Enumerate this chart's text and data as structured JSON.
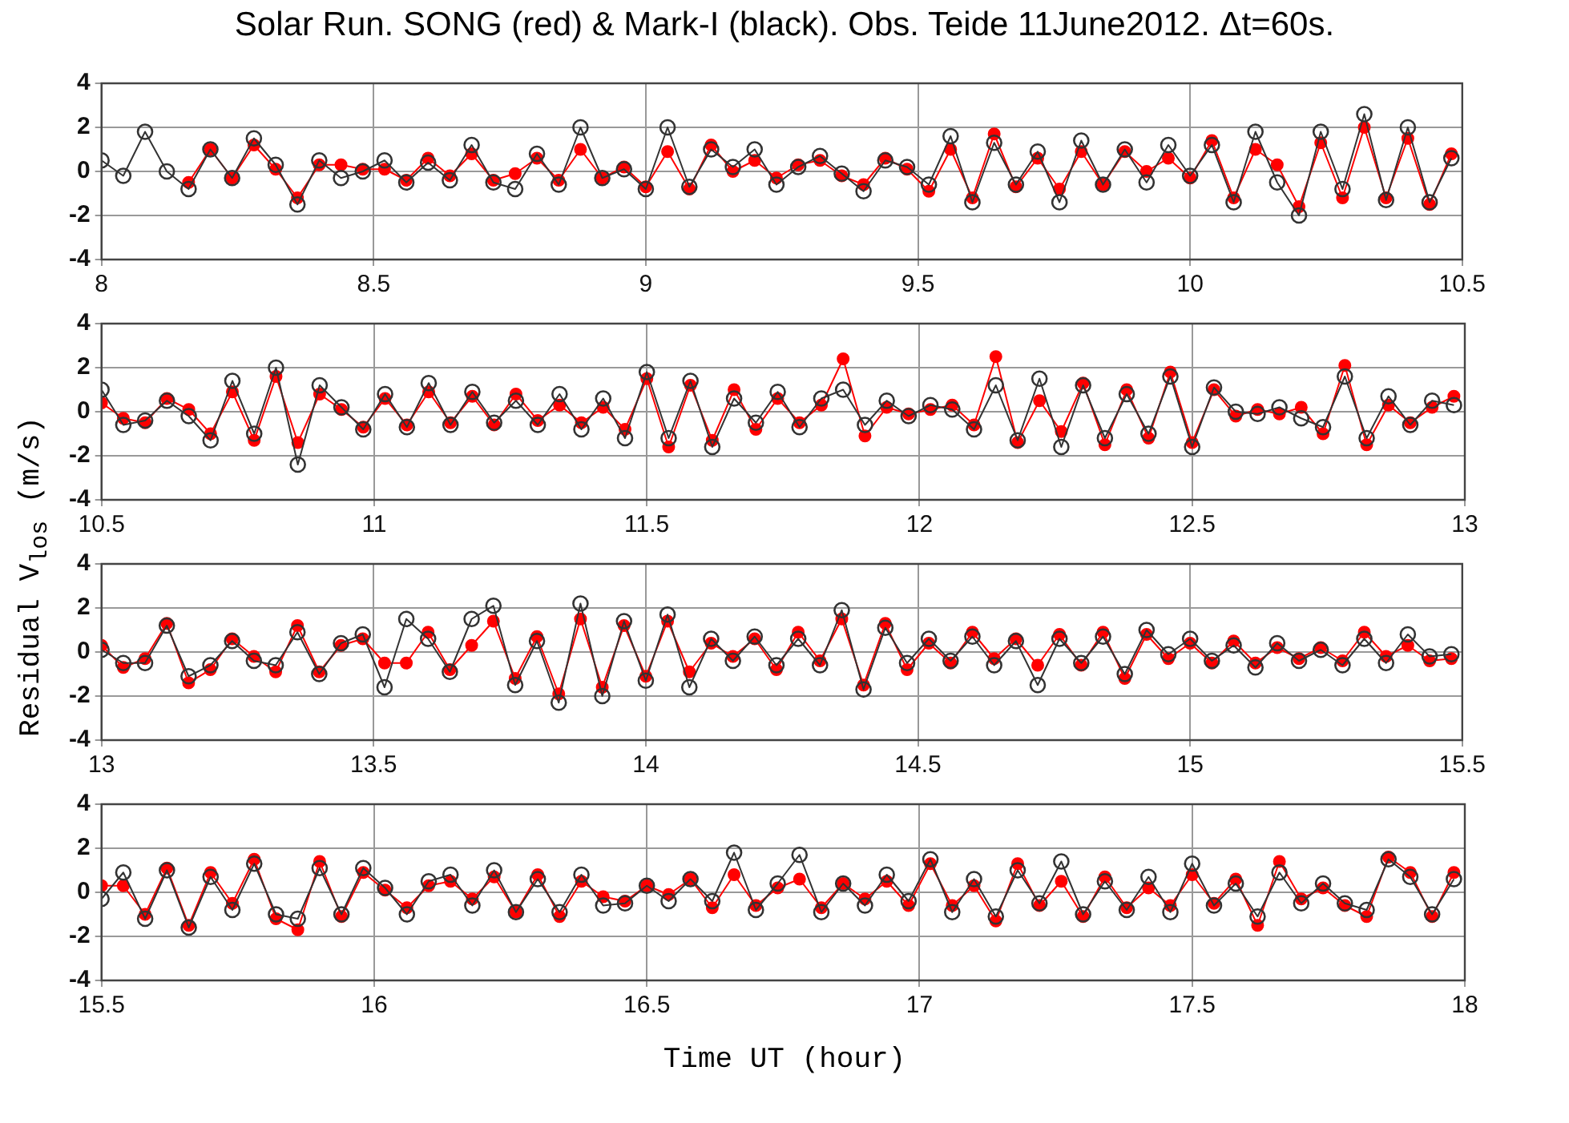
{
  "chart_data": [
    {
      "type": "line",
      "title": "Solar Run. SONG (red) & Mark-I (black). Obs. Teide 11June2012.  Δt=60s.",
      "ylabel": "Residual V$_{los}$ (m/s)",
      "marker": "circle",
      "grid": true,
      "x": [
        8,
        8.04,
        8.08,
        8.12,
        8.16,
        8.2,
        8.24,
        8.28,
        8.32,
        8.36,
        8.4,
        8.44,
        8.48,
        8.52,
        8.56,
        8.6,
        8.64,
        8.68,
        8.72,
        8.76,
        8.8,
        8.84,
        8.88,
        8.92,
        8.96,
        9,
        9.04,
        9.08,
        9.12,
        9.16,
        9.2,
        9.24,
        9.28,
        9.32,
        9.36,
        9.4,
        9.44,
        9.48,
        9.52,
        9.56,
        9.6,
        9.64,
        9.68,
        9.72,
        9.76,
        9.8,
        9.84,
        9.88,
        9.92,
        9.96,
        10,
        10.04,
        10.08,
        10.12,
        10.16,
        10.2,
        10.24,
        10.28,
        10.32,
        10.36,
        10.4,
        10.44,
        10.48
      ],
      "xlim": [
        8,
        10.5
      ],
      "xticks": [
        8,
        8.5,
        9,
        9.5,
        10,
        10.5
      ],
      "ylim": [
        -4,
        4
      ],
      "yticks": [
        -4,
        -2,
        0,
        2,
        4
      ],
      "series": [
        {
          "color": "#ff0000",
          "values": [
            null,
            null,
            null,
            null,
            -0.5,
            1.0,
            -0.3,
            1.2,
            0.1,
            -1.2,
            0.3,
            0.3,
            0.1,
            0.1,
            -0.4,
            0.6,
            -0.2,
            0.8,
            -0.4,
            -0.1,
            0.6,
            -0.4,
            1.0,
            -0.3,
            0.2,
            -0.7,
            0.9,
            -0.8,
            1.2,
            0,
            0.5,
            -0.3,
            0.3,
            0.5,
            -0.2,
            -0.6,
            0.6,
            0.1,
            -0.9,
            1.0,
            -1.2,
            1.7,
            -0.7,
            0.6,
            -0.8,
            0.9,
            -0.6,
            0.9,
            0,
            0.6,
            -0.3,
            1.4,
            -1.2,
            1.0,
            0.3,
            -1.6,
            1.3,
            -1.2,
            2.0,
            -1.2,
            1.5,
            -1.5,
            0.8
          ]
        },
        {
          "color": "#333333",
          "values": [
            0.5,
            -0.2,
            1.8,
            0,
            -0.8,
            1.0,
            -0.3,
            1.5,
            0.3,
            -1.5,
            0.5,
            -0.3,
            0,
            0.5,
            -0.5,
            0.4,
            -0.4,
            1.2,
            -0.5,
            -0.8,
            0.8,
            -0.6,
            2.0,
            -0.3,
            0.1,
            -0.8,
            2.0,
            -0.7,
            1.0,
            0.2,
            1.0,
            -0.6,
            0.2,
            0.7,
            -0.1,
            -0.9,
            0.5,
            0.2,
            -0.6,
            1.6,
            -1.4,
            1.3,
            -0.6,
            0.9,
            -1.4,
            1.4,
            -0.6,
            1.0,
            -0.5,
            1.2,
            -0.2,
            1.2,
            -1.4,
            1.8,
            -0.5,
            -2.0,
            1.8,
            -0.8,
            2.6,
            -1.3,
            2.0,
            -1.4,
            0.6
          ]
        }
      ]
    },
    {
      "type": "line",
      "marker": "circle",
      "grid": true,
      "x": [
        10.5,
        10.54,
        10.58,
        10.62,
        10.66,
        10.7,
        10.74,
        10.78,
        10.82,
        10.86,
        10.9,
        10.94,
        10.98,
        11.02,
        11.06,
        11.1,
        11.14,
        11.18,
        11.22,
        11.26,
        11.3,
        11.34,
        11.38,
        11.42,
        11.46,
        11.5,
        11.54,
        11.58,
        11.62,
        11.66,
        11.7,
        11.74,
        11.78,
        11.82,
        11.86,
        11.9,
        11.94,
        11.98,
        12.02,
        12.06,
        12.1,
        12.14,
        12.18,
        12.22,
        12.26,
        12.3,
        12.34,
        12.38,
        12.42,
        12.46,
        12.5,
        12.54,
        12.58,
        12.62,
        12.66,
        12.7,
        12.74,
        12.78,
        12.82,
        12.86,
        12.9,
        12.94,
        12.98
      ],
      "xlim": [
        10.5,
        13
      ],
      "xticks": [
        10.5,
        11,
        11.5,
        12,
        12.5,
        13
      ],
      "ylim": [
        -4,
        4
      ],
      "yticks": [
        -4,
        -2,
        0,
        2,
        4
      ],
      "series": [
        {
          "color": "#ff0000",
          "values": [
            0.4,
            -0.3,
            -0.5,
            0.6,
            0.1,
            -1.0,
            0.9,
            -1.3,
            1.6,
            -1.4,
            0.8,
            0.1,
            -0.7,
            0.6,
            -0.6,
            0.9,
            -0.5,
            0.7,
            -0.6,
            0.8,
            -0.4,
            0.3,
            -0.5,
            0.2,
            -0.8,
            1.5,
            -1.6,
            1.2,
            -1.3,
            1.0,
            -0.8,
            0.6,
            -0.5,
            0.3,
            2.4,
            -1.1,
            0.2,
            -0.1,
            0.1,
            0.3,
            -0.6,
            2.5,
            -1.4,
            0.5,
            -0.9,
            1.3,
            -1.5,
            1.0,
            -1.2,
            1.8,
            -1.4,
            1.0,
            -0.2,
            0.1,
            -0.1,
            0.2,
            -1.0,
            2.1,
            -1.5,
            0.3,
            -0.5,
            0.2,
            0.7
          ]
        },
        {
          "color": "#333333",
          "values": [
            1.0,
            -0.6,
            -0.4,
            0.5,
            -0.2,
            -1.3,
            1.4,
            -1.0,
            2.0,
            -2.4,
            1.2,
            0.2,
            -0.8,
            0.8,
            -0.7,
            1.3,
            -0.6,
            0.9,
            -0.5,
            0.5,
            -0.6,
            0.8,
            -0.8,
            0.6,
            -1.2,
            1.8,
            -1.2,
            1.4,
            -1.6,
            0.6,
            -0.5,
            0.9,
            -0.7,
            0.6,
            1.0,
            -0.6,
            0.5,
            -0.2,
            0.3,
            0.1,
            -0.8,
            1.2,
            -1.3,
            1.5,
            -1.6,
            1.2,
            -1.2,
            0.8,
            -1.0,
            1.6,
            -1.6,
            1.1,
            0,
            -0.1,
            0.2,
            -0.3,
            -0.7,
            1.6,
            -1.2,
            0.7,
            -0.6,
            0.5,
            0.3
          ]
        }
      ]
    },
    {
      "type": "line",
      "marker": "circle",
      "grid": true,
      "x": [
        13,
        13.04,
        13.08,
        13.12,
        13.16,
        13.2,
        13.24,
        13.28,
        13.32,
        13.36,
        13.4,
        13.44,
        13.48,
        13.52,
        13.56,
        13.6,
        13.64,
        13.68,
        13.72,
        13.76,
        13.8,
        13.84,
        13.88,
        13.92,
        13.96,
        14,
        14.04,
        14.08,
        14.12,
        14.16,
        14.2,
        14.24,
        14.28,
        14.32,
        14.36,
        14.4,
        14.44,
        14.48,
        14.52,
        14.56,
        14.6,
        14.64,
        14.68,
        14.72,
        14.76,
        14.8,
        14.84,
        14.88,
        14.92,
        14.96,
        15,
        15.04,
        15.08,
        15.12,
        15.16,
        15.2,
        15.24,
        15.28,
        15.32,
        15.36,
        15.4,
        15.44,
        15.48
      ],
      "xlim": [
        13,
        15.5
      ],
      "xticks": [
        13,
        13.5,
        14,
        14.5,
        15,
        15.5
      ],
      "ylim": [
        -4,
        4
      ],
      "yticks": [
        -4,
        -2,
        0,
        2,
        4
      ],
      "series": [
        {
          "color": "#ff0000",
          "values": [
            0.3,
            -0.7,
            -0.3,
            1.3,
            -1.4,
            -0.8,
            0.6,
            -0.2,
            -0.9,
            1.2,
            -0.9,
            0.3,
            0.6,
            -0.5,
            -0.5,
            0.9,
            -0.8,
            0.3,
            1.4,
            -1.2,
            0.7,
            -1.9,
            1.5,
            -1.6,
            1.2,
            -1.1,
            1.4,
            -0.9,
            0.4,
            -0.2,
            0.6,
            -0.8,
            0.9,
            -0.4,
            1.5,
            -1.5,
            1.3,
            -0.8,
            0.4,
            -0.5,
            0.9,
            -0.3,
            0.6,
            -0.6,
            0.8,
            -0.6,
            0.9,
            -1.2,
            0.8,
            -0.3,
            0.4,
            -0.5,
            0.5,
            -0.5,
            0.2,
            -0.3,
            0.2,
            -0.4,
            0.9,
            -0.2,
            0.3,
            -0.4,
            -0.3
          ]
        },
        {
          "color": "#333333",
          "values": [
            0.1,
            -0.5,
            -0.5,
            1.2,
            -1.1,
            -0.6,
            0.5,
            -0.4,
            -0.6,
            0.9,
            -1.0,
            0.4,
            0.8,
            -1.6,
            1.5,
            0.6,
            -0.9,
            1.5,
            2.1,
            -1.5,
            0.5,
            -2.3,
            2.2,
            -2.0,
            1.4,
            -1.3,
            1.7,
            -1.6,
            0.6,
            -0.4,
            0.7,
            -0.6,
            0.6,
            -0.6,
            1.9,
            -1.7,
            1.1,
            -0.5,
            0.6,
            -0.4,
            0.7,
            -0.6,
            0.5,
            -1.5,
            0.6,
            -0.5,
            0.7,
            -1.0,
            1.0,
            -0.1,
            0.6,
            -0.4,
            0.3,
            -0.7,
            0.4,
            -0.4,
            0.1,
            -0.6,
            0.6,
            -0.5,
            0.8,
            -0.2,
            -0.1
          ]
        }
      ]
    },
    {
      "type": "line",
      "xlabel": "Time UT (hour)",
      "marker": "circle",
      "grid": true,
      "x": [
        15.5,
        15.54,
        15.58,
        15.62,
        15.66,
        15.7,
        15.74,
        15.78,
        15.82,
        15.86,
        15.9,
        15.94,
        15.98,
        16.02,
        16.06,
        16.1,
        16.14,
        16.18,
        16.22,
        16.26,
        16.3,
        16.34,
        16.38,
        16.42,
        16.46,
        16.5,
        16.54,
        16.58,
        16.62,
        16.66,
        16.7,
        16.74,
        16.78,
        16.82,
        16.86,
        16.9,
        16.94,
        16.98,
        17.02,
        17.06,
        17.1,
        17.14,
        17.18,
        17.22,
        17.26,
        17.3,
        17.34,
        17.38,
        17.42,
        17.46,
        17.5,
        17.54,
        17.58,
        17.62,
        17.66,
        17.7,
        17.74,
        17.78,
        17.82,
        17.86,
        17.9,
        17.94,
        17.98
      ],
      "xlim": [
        15.5,
        18
      ],
      "xticks": [
        15.5,
        16,
        16.5,
        17,
        17.5,
        18
      ],
      "ylim": [
        -4,
        4
      ],
      "yticks": [
        -4,
        -2,
        0,
        2,
        4
      ],
      "series": [
        {
          "color": "#ff0000",
          "values": [
            0.3,
            0.3,
            -1.0,
            1.1,
            -1.5,
            0.9,
            -0.5,
            1.5,
            -1.2,
            -1.7,
            1.4,
            -1.1,
            0.9,
            0.1,
            -0.7,
            0.3,
            0.5,
            -0.3,
            0.7,
            -0.9,
            0.8,
            -1.1,
            0.5,
            -0.2,
            -0.4,
            0.3,
            -0.1,
            0.6,
            -0.7,
            0.8,
            -0.6,
            0.2,
            0.6,
            -0.7,
            0.4,
            -0.3,
            0.5,
            -0.6,
            1.3,
            -0.6,
            0.3,
            -1.3,
            1.3,
            -0.6,
            0.5,
            -1.1,
            0.7,
            -0.7,
            0.2,
            -0.6,
            0.8,
            -0.5,
            0.6,
            -1.5,
            1.4,
            -0.3,
            0.2,
            -0.6,
            -1.1,
            1.6,
            0.9,
            -1.1,
            0.9
          ]
        },
        {
          "color": "#333333",
          "values": [
            -0.3,
            0.9,
            -1.2,
            1.0,
            -1.6,
            0.7,
            -0.8,
            1.3,
            -1.0,
            -1.2,
            1.1,
            -1.0,
            1.1,
            0.2,
            -1.0,
            0.5,
            0.8,
            -0.6,
            1.0,
            -0.9,
            0.6,
            -0.9,
            0.8,
            -0.6,
            -0.5,
            0.3,
            -0.4,
            0.6,
            -0.4,
            1.8,
            -0.8,
            0.4,
            1.7,
            -0.9,
            0.4,
            -0.6,
            0.8,
            -0.4,
            1.5,
            -0.9,
            0.6,
            -1.1,
            1.0,
            -0.5,
            1.4,
            -1.0,
            0.5,
            -0.8,
            0.7,
            -0.9,
            1.3,
            -0.6,
            0.4,
            -1.1,
            0.9,
            -0.5,
            0.4,
            -0.5,
            -0.8,
            1.5,
            0.7,
            -1.0,
            0.6
          ]
        }
      ]
    }
  ]
}
